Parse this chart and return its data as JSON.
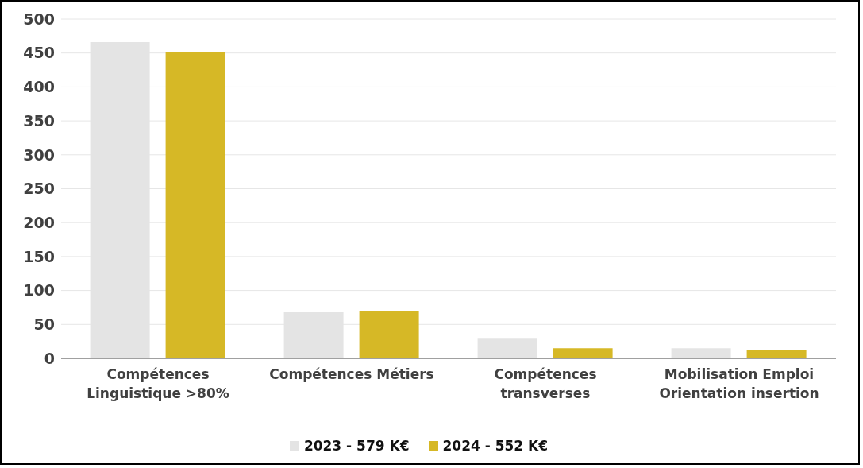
{
  "chart_data": {
    "type": "bar",
    "categories": [
      "Compétences Linguistique >80%",
      "Compétences Métiers",
      "Compétences transverses",
      "Mobilisation Emploi Orientation insertion"
    ],
    "series": [
      {
        "name": "2023 - 579 K€",
        "color": "#e4e4e4",
        "values": [
          466,
          68,
          29,
          15
        ]
      },
      {
        "name": "2024 - 552 K€",
        "color": "#d6b826",
        "values": [
          452,
          70,
          15,
          13
        ]
      }
    ],
    "ylim": [
      0,
      500
    ],
    "yticks": [
      0,
      50,
      100,
      150,
      200,
      250,
      300,
      350,
      400,
      450,
      500
    ],
    "grid": "y",
    "legend": "bottom"
  }
}
